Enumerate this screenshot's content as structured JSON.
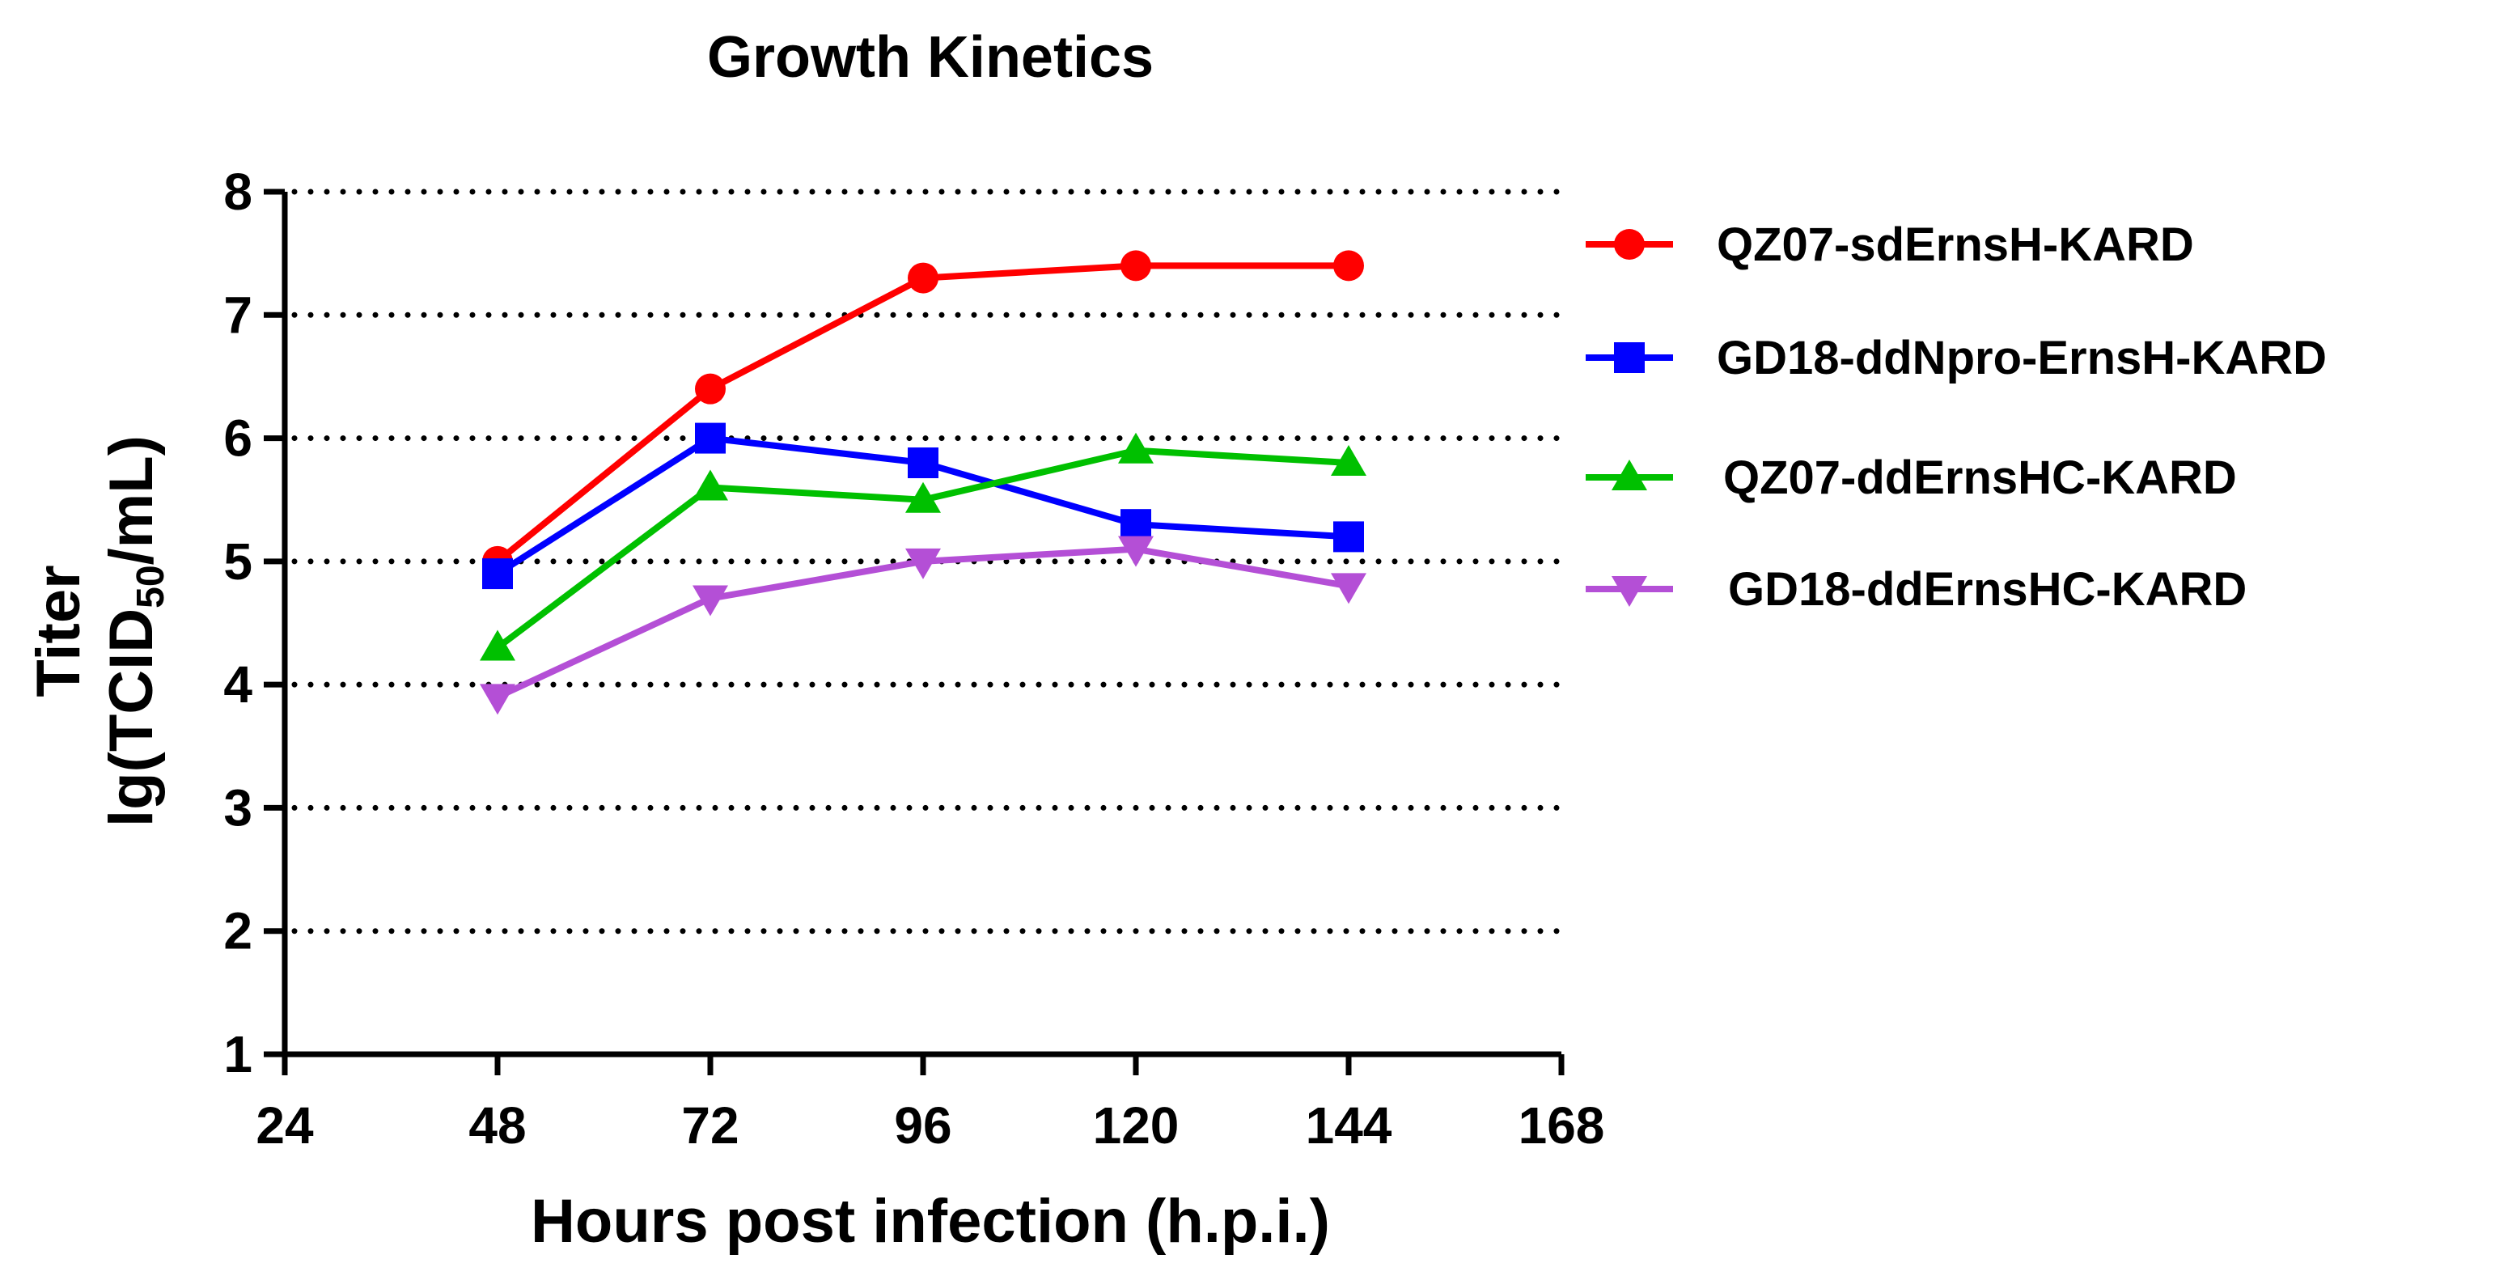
{
  "chart_data": {
    "type": "line",
    "title": "Growth Kinetics",
    "xlabel": "Hours post infection (h.p.i.)",
    "ylabel_line1": "Titer",
    "ylabel_line2_prefix": "lg(TCID",
    "ylabel_line2_sub": "50",
    "ylabel_line2_suffix": "/mL)",
    "xlim": [
      24,
      168
    ],
    "ylim": [
      1,
      8
    ],
    "x_ticks": [
      24,
      48,
      72,
      96,
      120,
      144,
      168
    ],
    "y_ticks": [
      1,
      2,
      3,
      4,
      5,
      6,
      7,
      8
    ],
    "grid": "horizontal dotted",
    "legend_position": "right",
    "x": [
      48,
      72,
      96,
      120,
      144
    ],
    "series": [
      {
        "name": "QZ07-sdErnsH-KARD",
        "color": "#ff0000",
        "marker": "circle",
        "values": [
          5.0,
          6.4,
          7.3,
          7.4,
          7.4
        ]
      },
      {
        "name": "GD18-ddNpro-ErnsH-KARD",
        "color": "#0000ff",
        "marker": "square",
        "values": [
          4.9,
          6.0,
          5.8,
          5.3,
          5.2
        ]
      },
      {
        "name": "QZ07-ddErnsHC-KARD",
        "color": "#00c000",
        "marker": "triangle-up",
        "values": [
          4.3,
          5.6,
          5.5,
          5.9,
          5.8
        ]
      },
      {
        "name": "GD18-ddErnsHC-KARD",
        "color": "#b44fd6",
        "marker": "triangle-down",
        "values": [
          3.9,
          4.7,
          5.0,
          5.1,
          4.8
        ]
      }
    ]
  }
}
